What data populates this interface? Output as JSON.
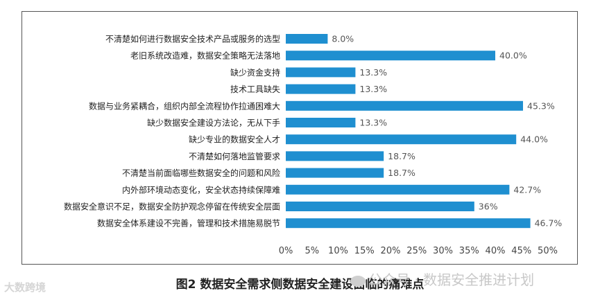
{
  "chart_data": {
    "type": "bar",
    "orientation": "horizontal",
    "title": "图2 数据安全需求侧数据安全建设面临的痛难点",
    "categories": [
      "不清楚如何进行数据安全技术产品或服务的选型",
      "老旧系统改造难，数据安全策略无法落地",
      "缺少资金支持",
      "技术工具缺失",
      "数据与业务紧耦合，组织内部全流程协作拉通困难大",
      "缺少数据安全建设方法论，无从下手",
      "缺少专业的数据安全人才",
      "不清楚如何落地监管要求",
      "不清楚当前面临哪些数据安全的问题和风险",
      "内外部环境动态变化，安全状态持续保障难",
      "数据安全意识不足，数据安全防护观念停留在传统安全层面",
      "数据安全体系建设不完善，管理和技术措施易脱节"
    ],
    "values": [
      8.0,
      40.0,
      13.3,
      13.3,
      45.3,
      13.3,
      44.0,
      18.7,
      18.7,
      42.7,
      36,
      46.7
    ],
    "value_labels": [
      "8.0%",
      "40.0%",
      "13.3%",
      "13.3%",
      "45.3%",
      "13.3%",
      "44.0%",
      "18.7%",
      "18.7%",
      "42.7%",
      "36%",
      "46.7%"
    ],
    "xlim": [
      0,
      50
    ],
    "xticks": [
      "0%",
      "5%",
      "10%",
      "15%",
      "20%",
      "25%",
      "30%",
      "35%",
      "40%",
      "45%",
      "50%"
    ],
    "grid": true,
    "bar_color": "#1f8fd0"
  },
  "watermarks": {
    "left": "大数跨境",
    "right": "公众号 · 数据安全推进计划"
  }
}
